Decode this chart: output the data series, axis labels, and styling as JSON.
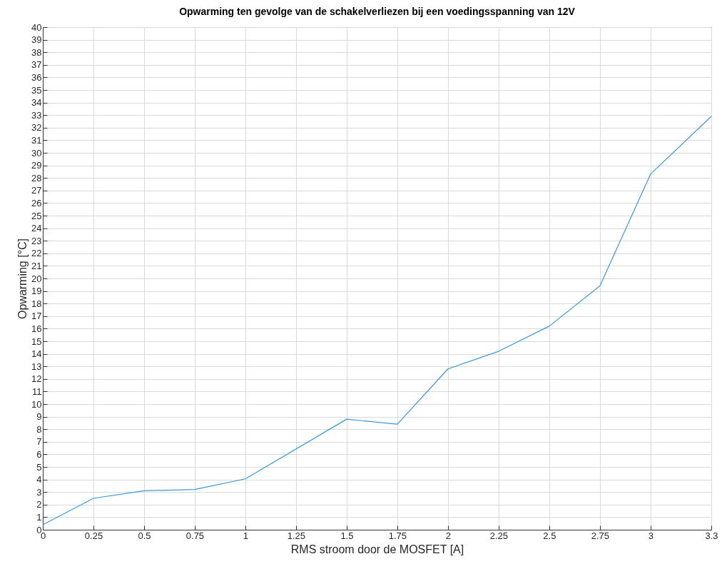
{
  "chart_data": {
    "type": "line",
    "title": "Opwarming ten gevolge van de schakelverliezen bij een voedingsspanning van 12V",
    "xlabel": "RMS stroom door de MOSFET [A]",
    "ylabel": "Opwarming [°C]",
    "x": [
      0,
      0.25,
      0.5,
      0.75,
      1,
      1.5,
      1.75,
      2,
      2.25,
      2.5,
      2.75,
      3,
      3.3
    ],
    "series": [
      {
        "color": "#3b97d8",
        "values": [
          0.4,
          2.5,
          3.1,
          3.2,
          4.05,
          8.8,
          8.4,
          12.8,
          14.2,
          16.2,
          19.4,
          28.3,
          32.9
        ]
      }
    ],
    "xlim": [
      0,
      3.3
    ],
    "xticks": [
      0,
      0.25,
      0.5,
      0.75,
      1,
      1.25,
      1.5,
      1.75,
      2,
      2.25,
      2.5,
      2.75,
      3,
      3.3
    ],
    "ylim": [
      0,
      40
    ],
    "yticks": [
      0,
      1,
      2,
      3,
      4,
      5,
      6,
      7,
      8,
      9,
      10,
      11,
      12,
      13,
      14,
      15,
      16,
      17,
      18,
      19,
      20,
      21,
      22,
      23,
      24,
      25,
      26,
      27,
      28,
      29,
      30,
      31,
      32,
      33,
      34,
      35,
      36,
      37,
      38,
      39,
      40
    ],
    "grid": true,
    "marker": "none",
    "line_style": "solid"
  }
}
